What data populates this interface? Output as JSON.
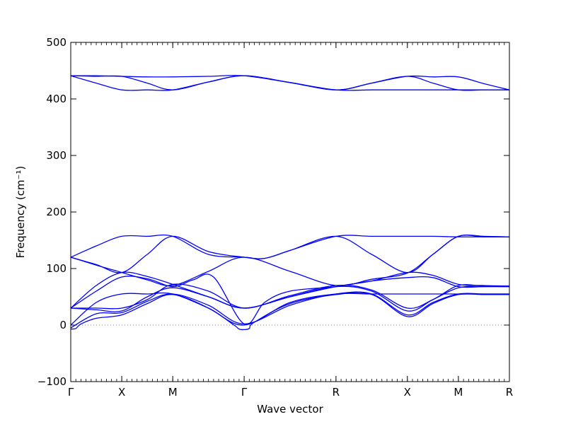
{
  "chart_data": {
    "type": "line",
    "title": "",
    "xlabel": "Wave vector",
    "ylabel": "Frequency (cm⁻¹)",
    "ylim": [
      -100,
      500
    ],
    "yticks": [
      -100,
      0,
      100,
      200,
      300,
      400,
      500
    ],
    "xlim": [
      0,
      8.6
    ],
    "special_points": [
      {
        "label": "Γ",
        "x": 0.0
      },
      {
        "label": "X",
        "x": 1.0
      },
      {
        "label": "M",
        "x": 2.0
      },
      {
        "label": "Γ",
        "x": 3.4
      },
      {
        "label": "R",
        "x": 5.2
      },
      {
        "label": "X",
        "x": 6.6
      },
      {
        "label": "M",
        "x": 7.6
      },
      {
        "label": "R",
        "x": 8.6
      }
    ],
    "line_color": "#0000ff",
    "zero_line": {
      "y": 0,
      "style": "dotted",
      "color": "#555555"
    },
    "grid": false,
    "series": [
      {
        "x": [
          0,
          0.5,
          1,
          1.5,
          2,
          2.7,
          3.4,
          4.3,
          5.2,
          5.9,
          6.6,
          7.1,
          7.6,
          8.1,
          8.6
        ],
        "values": [
          441,
          441,
          440,
          439,
          439,
          440,
          441,
          429,
          416,
          428,
          440,
          439,
          439,
          427,
          416
        ]
      },
      {
        "x": [
          0,
          0.5,
          1,
          1.5,
          2,
          2.7,
          3.4,
          4.3,
          5.2,
          5.9,
          6.6,
          7.1,
          7.6,
          8.1,
          8.6
        ],
        "values": [
          441,
          440,
          440,
          428,
          416,
          430,
          441,
          429,
          416,
          416,
          416,
          416,
          416,
          416,
          416
        ]
      },
      {
        "x": [
          0,
          0.5,
          1,
          1.5,
          2,
          2.7,
          3.4,
          4.3,
          5.2,
          5.9,
          6.6,
          7.1,
          7.6,
          8.1,
          8.6
        ],
        "values": [
          441,
          428,
          416,
          416,
          416,
          430,
          441,
          429,
          416,
          428,
          440,
          428,
          416,
          416,
          416
        ]
      },
      {
        "x": [
          0,
          0.5,
          1,
          1.5,
          2,
          2.7,
          3.4,
          3.8,
          4.3,
          5.2,
          5.9,
          6.6,
          7.1,
          7.6,
          8.1,
          8.6
        ],
        "values": [
          120,
          140,
          157,
          157,
          157,
          125,
          120,
          118,
          132,
          157,
          157,
          157,
          157,
          156,
          156,
          156
        ]
      },
      {
        "x": [
          0,
          0.5,
          1,
          1.5,
          2,
          2.7,
          3.4,
          3.8,
          4.3,
          5.2,
          5.9,
          6.6,
          7.1,
          7.6,
          8.1,
          8.6
        ],
        "values": [
          120,
          107,
          93,
          125,
          157,
          130,
          120,
          118,
          132,
          157,
          125,
          93,
          125,
          157,
          156,
          156
        ]
      },
      {
        "x": [
          0,
          0.5,
          1,
          1.5,
          2,
          2.7,
          3.4,
          4.3,
          5.2,
          5.9,
          6.6,
          7.1,
          7.6,
          8.1,
          8.6
        ],
        "values": [
          120,
          106,
          93,
          80,
          70,
          95,
          120,
          95,
          70,
          81,
          92,
          125,
          157,
          157,
          156
        ]
      },
      {
        "x": [
          0,
          0.5,
          1,
          1.5,
          2,
          2.7,
          3.4,
          4.3,
          5.2,
          5.9,
          6.6,
          7.1,
          7.6,
          8.1,
          8.6
        ],
        "values": [
          30,
          70,
          93,
          86,
          72,
          50,
          30,
          50,
          68,
          78,
          93,
          88,
          72,
          70,
          69
        ]
      },
      {
        "x": [
          0,
          0.5,
          1,
          1.5,
          2,
          2.4,
          2.8,
          3.4,
          3.8,
          4.3,
          5.2,
          5.9,
          6.6,
          7.1,
          7.6,
          8.1,
          8.6
        ],
        "values": [
          30,
          60,
          85,
          82,
          68,
          80,
          85,
          2,
          40,
          60,
          68,
          78,
          84,
          84,
          68,
          68,
          68
        ]
      },
      {
        "x": [
          0,
          0.5,
          1,
          1.5,
          2,
          2.7,
          3.4,
          4.3,
          5.2,
          5.9,
          6.6,
          7.1,
          7.6,
          8.1,
          8.6
        ],
        "values": [
          0,
          40,
          55,
          55,
          55,
          30,
          0,
          40,
          55,
          55,
          55,
          55,
          55,
          55,
          55
        ]
      },
      {
        "x": [
          0,
          0.5,
          1,
          1.5,
          2,
          2.7,
          3.4,
          4.3,
          5.2,
          5.9,
          6.6,
          7.1,
          7.6,
          8.1,
          8.6
        ],
        "values": [
          30,
          30,
          30,
          45,
          72,
          60,
          30,
          52,
          70,
          62,
          30,
          45,
          70,
          69,
          69
        ]
      },
      {
        "x": [
          0,
          0.5,
          1,
          1.5,
          2,
          2.7,
          3.4,
          4.3,
          5.2,
          5.9,
          6.6,
          7.1,
          7.6,
          8.1,
          8.6
        ],
        "values": [
          30,
          27,
          25,
          50,
          66,
          50,
          30,
          50,
          68,
          60,
          25,
          45,
          66,
          68,
          68
        ]
      },
      {
        "x": [
          0,
          0.5,
          1,
          1.5,
          2,
          2.7,
          3.4,
          4.3,
          5.2,
          5.9,
          6.6,
          7.1,
          7.6,
          8.1,
          8.6
        ],
        "values": [
          -5,
          20,
          22,
          42,
          55,
          35,
          2,
          35,
          55,
          55,
          18,
          40,
          55,
          55,
          55
        ]
      },
      {
        "x": [
          0,
          0.1,
          0.2,
          0.5,
          1,
          1.5,
          2,
          2.7,
          3.2,
          3.3,
          3.4,
          3.5,
          3.6,
          4.3,
          5.2,
          5.9,
          6.6,
          7.1,
          7.6,
          8.1,
          8.6
        ],
        "values": [
          -7,
          -6,
          2,
          12,
          18,
          38,
          54,
          30,
          0,
          -7,
          -8,
          -6,
          5,
          38,
          54,
          54,
          15,
          38,
          54,
          54,
          54
        ]
      }
    ]
  }
}
